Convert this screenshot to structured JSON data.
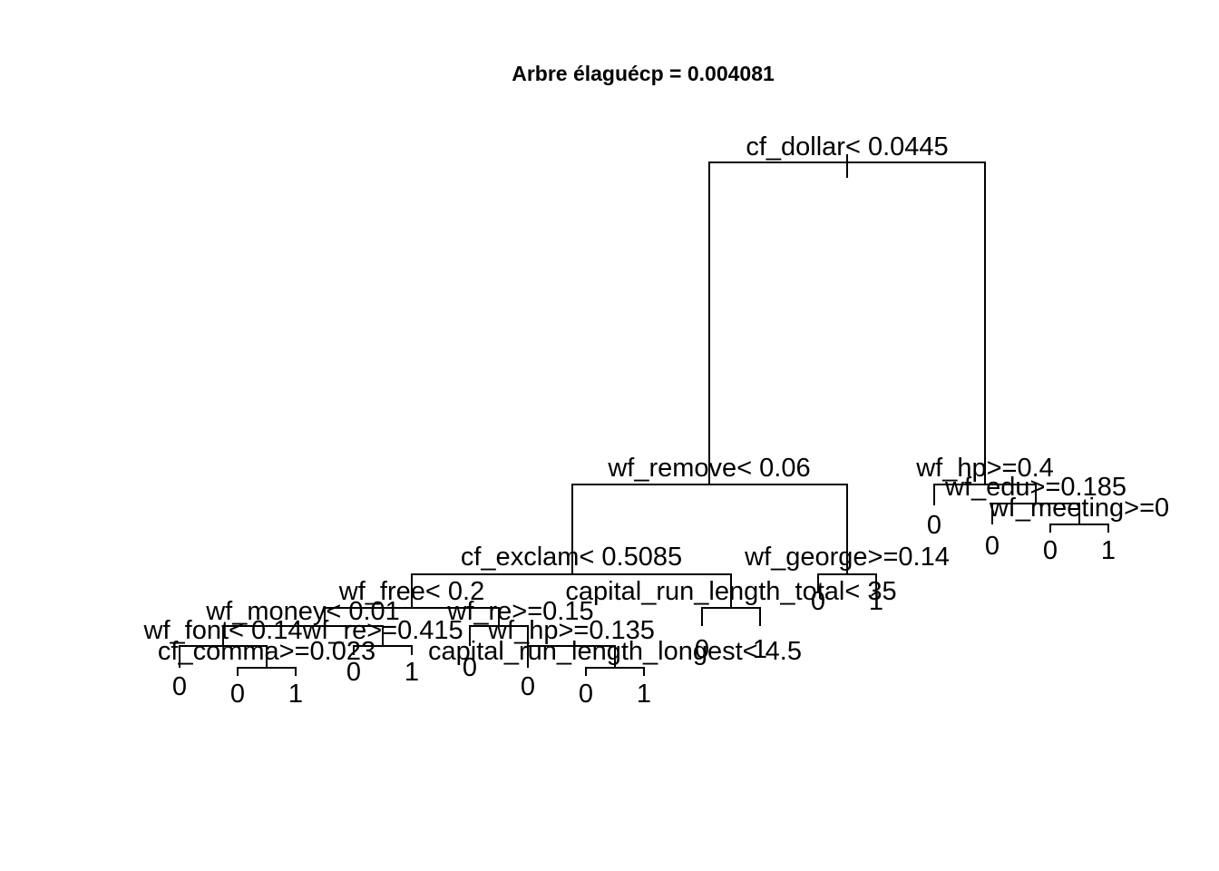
{
  "title": "Arbre élaguécp = 0.004081",
  "tree": {
    "splits": [
      {
        "id": "root",
        "label": "cf_dollar< 0.0445"
      },
      {
        "id": "remove",
        "label": "wf_remove< 0.06"
      },
      {
        "id": "hp04",
        "label": "wf_hp>=0.4"
      },
      {
        "id": "exclam",
        "label": "cf_exclam< 0.5085"
      },
      {
        "id": "george",
        "label": "wf_george>=0.14"
      },
      {
        "id": "edu",
        "label": "wf_edu>=0.185"
      },
      {
        "id": "meeting",
        "label": "wf_meeting>=0"
      },
      {
        "id": "free",
        "label": "wf_free< 0.2"
      },
      {
        "id": "crlt",
        "label": "capital_run_length_total< 35"
      },
      {
        "id": "money",
        "label": "wf_money< 0.01"
      },
      {
        "id": "re015",
        "label": "wf_re>=0.15"
      },
      {
        "id": "font",
        "label": "wf_font< 0.14"
      },
      {
        "id": "re0415",
        "label": "wf_re>=0.415"
      },
      {
        "id": "hp0135",
        "label": "wf_hp>=0.135"
      },
      {
        "id": "comma",
        "label": "cf_comma>=0.023"
      },
      {
        "id": "crll",
        "label": "capital_run_length_longest< 4.5"
      }
    ],
    "leaves": [
      "0",
      "0",
      "1",
      "0",
      "1",
      "0",
      "0",
      "0",
      "1",
      "0",
      "1",
      "0",
      "1",
      "0",
      "0",
      "1"
    ]
  }
}
